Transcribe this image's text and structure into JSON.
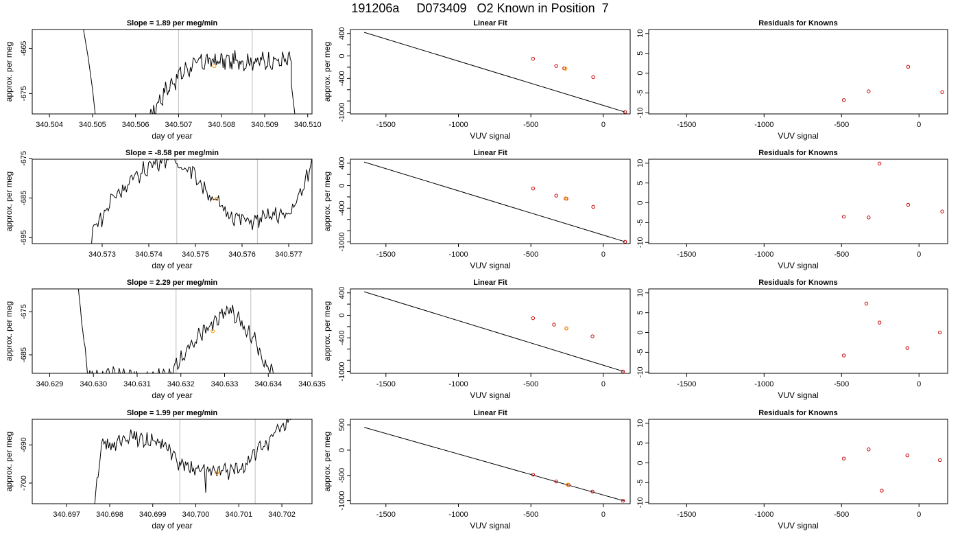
{
  "suptitle": "191206a     D073409   O2 Known in Position  7",
  "colors": {
    "trace": "#000000",
    "known": "#cc0000",
    "marker": "#ff9900",
    "window": "#c8c8c8"
  },
  "chart_data": [
    {
      "type": "line",
      "panel": "timeseries",
      "row": 1,
      "title": "Slope =  1.89  per meg/min",
      "xlabel": "day of year",
      "ylabel": "approx. per meg",
      "xlim": [
        340.5036,
        340.5101
      ],
      "ylim": [
        -679.5,
        -660.8
      ],
      "xticks": [
        340.504,
        340.505,
        340.506,
        340.507,
        340.508,
        340.509,
        340.51
      ],
      "xtick_labels": [
        "340.504",
        "340.505",
        "340.506",
        "340.507",
        "340.508",
        "340.509",
        "340.510"
      ],
      "yticks": [
        -665,
        -675
      ],
      "ytick_labels": [
        "-665",
        "-675"
      ],
      "vlines": [
        340.507,
        340.50871
      ],
      "marker": {
        "x": 340.50783,
        "y": -668.9
      },
      "trace": {
        "points": [
          [
            340.50476,
            -659
          ],
          [
            340.5049,
            -667
          ],
          [
            340.505,
            -674
          ],
          [
            340.50508,
            -681
          ]
        ],
        "start": 340.50617,
        "end": 340.50962,
        "base": -683,
        "peak": -667.8,
        "noise": 1.0,
        "tail": [
          [
            340.50962,
            -673
          ],
          [
            340.50972,
            -681
          ]
        ]
      }
    },
    {
      "type": "scatter",
      "panel": "linear_fit",
      "row": 1,
      "title": "Linear Fit",
      "xlabel": "VUV signal",
      "ylabel": "approx. per meg",
      "xlim": [
        -1745,
        185
      ],
      "ylim": [
        -1030,
        470
      ],
      "xticks": [
        -1500,
        -1000,
        -500,
        0
      ],
      "xtick_labels": [
        "-1500",
        "-1000",
        "-500",
        "0"
      ],
      "yticks": [
        400,
        0,
        -400,
        -1000
      ],
      "ytick_labels": [
        "400",
        "0",
        "-400",
        "-1000"
      ],
      "yminor": [
        200,
        -200,
        -600,
        -800
      ],
      "line": [
        [
          -1650,
          420
        ],
        [
          150,
          -997
        ]
      ],
      "points": [
        [
          -485,
          -50
        ],
        [
          -325,
          -177
        ],
        [
          -270,
          -220
        ],
        [
          -70,
          -377
        ],
        [
          150,
          -997
        ]
      ],
      "marker": {
        "x": -262,
        "y": -225
      }
    },
    {
      "type": "scatter",
      "panel": "residuals",
      "row": 1,
      "title": "Residuals for Knowns",
      "xlabel": "VUV signal",
      "ylabel": "",
      "xlim": [
        -1745,
        185
      ],
      "ylim": [
        -10.3,
        11
      ],
      "xticks": [
        -1500,
        -1000,
        -500,
        0
      ],
      "xtick_labels": [
        "-1500",
        "-1000",
        "-500",
        "0"
      ],
      "yticks": [
        10,
        5,
        0,
        -5,
        -10
      ],
      "ytick_labels": [
        "10",
        "5",
        "0",
        "-5",
        "-10"
      ],
      "points": [
        [
          -485,
          -6.8
        ],
        [
          -325,
          -4.6
        ],
        [
          -70,
          1.6
        ],
        [
          150,
          -4.8
        ]
      ]
    },
    {
      "type": "line",
      "panel": "timeseries",
      "row": 2,
      "title": "Slope =  -8.58  per meg/min",
      "xlabel": "day of year",
      "ylabel": "approx. per meg",
      "xlim": [
        340.5715,
        340.5775
      ],
      "ylim": [
        -696.5,
        -675.2
      ],
      "xticks": [
        340.573,
        340.574,
        340.575,
        340.576,
        340.577
      ],
      "xtick_labels": [
        "340.573",
        "340.574",
        "340.575",
        "340.576",
        "340.577"
      ],
      "yticks": [
        -675,
        -685,
        -695
      ],
      "ytick_labels": [
        "-675",
        "-685",
        "-695"
      ],
      "vlines": [
        340.5746,
        340.57633
      ],
      "marker": {
        "x": 340.57545,
        "y": -685.2
      },
      "trace": {
        "points": [
          [
            340.57277,
            -697
          ],
          [
            340.5728,
            -692
          ],
          [
            340.573,
            -690
          ],
          [
            340.5731,
            -688
          ],
          [
            340.5732,
            -685
          ],
          [
            340.5735,
            -682
          ],
          [
            340.5738,
            -679
          ],
          [
            340.5741,
            -676
          ],
          [
            340.5744,
            -675
          ],
          [
            340.5746,
            -676
          ],
          [
            340.5749,
            -678
          ],
          [
            340.5751,
            -681
          ],
          [
            340.5753,
            -684
          ],
          [
            340.5756,
            -688
          ],
          [
            340.5759,
            -690
          ],
          [
            340.5762,
            -691
          ],
          [
            340.5765,
            -690
          ],
          [
            340.5768,
            -689
          ],
          [
            340.57695,
            -690
          ],
          [
            340.5771,
            -687
          ],
          [
            340.5773,
            -683
          ],
          [
            340.57745,
            -678
          ],
          [
            340.5775,
            -675
          ]
        ],
        "noise": 1.1
      }
    },
    {
      "type": "scatter",
      "panel": "linear_fit",
      "row": 2,
      "title": "Linear Fit",
      "xlabel": "VUV signal",
      "ylabel": "approx. per meg",
      "xlim": [
        -1745,
        185
      ],
      "ylim": [
        -1030,
        470
      ],
      "xticks": [
        -1500,
        -1000,
        -500,
        0
      ],
      "xtick_labels": [
        "-1500",
        "-1000",
        "-500",
        "0"
      ],
      "yticks": [
        400,
        0,
        -400,
        -1000
      ],
      "ytick_labels": [
        "400",
        "0",
        "-400",
        "-1000"
      ],
      "yminor": [
        200,
        -200,
        -600,
        -800
      ],
      "line": [
        [
          -1650,
          420
        ],
        [
          150,
          -997
        ]
      ],
      "points": [
        [
          -485,
          -50
        ],
        [
          -325,
          -177
        ],
        [
          -255,
          -232
        ],
        [
          -70,
          -377
        ],
        [
          150,
          -997
        ]
      ],
      "marker": {
        "x": -262,
        "y": -227
      }
    },
    {
      "type": "scatter",
      "panel": "residuals",
      "row": 2,
      "title": "Residuals for Knowns",
      "xlabel": "VUV signal",
      "ylabel": "",
      "xlim": [
        -1745,
        185
      ],
      "ylim": [
        -10.3,
        11
      ],
      "xticks": [
        -1500,
        -1000,
        -500,
        0
      ],
      "xtick_labels": [
        "-1500",
        "-1000",
        "-500",
        "0"
      ],
      "yticks": [
        10,
        5,
        0,
        -5,
        -10
      ],
      "ytick_labels": [
        "10",
        "5",
        "0",
        "-5",
        "-10"
      ],
      "points": [
        [
          -485,
          -3.5
        ],
        [
          -325,
          -3.7
        ],
        [
          -255,
          9.9
        ],
        [
          -70,
          -0.5
        ],
        [
          150,
          -2.2
        ]
      ]
    },
    {
      "type": "line",
      "panel": "timeseries",
      "row": 3,
      "title": "Slope =  2.29  per meg/min",
      "xlabel": "day of year",
      "ylabel": "approx. per meg",
      "xlim": [
        340.6286,
        340.635
      ],
      "ylim": [
        -689.3,
        -669.7
      ],
      "xticks": [
        340.629,
        340.63,
        340.631,
        340.632,
        340.633,
        340.634,
        340.635
      ],
      "xtick_labels": [
        "340.629",
        "340.630",
        "340.631",
        "340.632",
        "340.633",
        "340.634",
        "340.635"
      ],
      "yticks": [
        -675,
        -685
      ],
      "ytick_labels": [
        "-675",
        "-685"
      ],
      "vlines": [
        340.63189,
        340.6336
      ],
      "marker": {
        "x": 340.63273,
        "y": -679.5
      },
      "trace": {
        "points": [
          [
            340.62965,
            -669
          ],
          [
            340.6297,
            -674
          ],
          [
            340.6298,
            -682
          ],
          [
            340.62985,
            -690
          ],
          [
            340.6317,
            -690
          ],
          [
            340.6319,
            -687
          ],
          [
            340.6322,
            -683
          ],
          [
            340.6325,
            -680
          ],
          [
            340.6328,
            -677
          ],
          [
            340.6331,
            -674
          ],
          [
            340.6334,
            -678
          ],
          [
            340.6337,
            -682
          ],
          [
            340.6339,
            -686
          ],
          [
            340.6341,
            -689
          ],
          [
            340.6342,
            -690
          ]
        ],
        "noise": 1.0
      }
    },
    {
      "type": "scatter",
      "panel": "linear_fit",
      "row": 3,
      "title": "Linear Fit",
      "xlabel": "VUV signal",
      "ylabel": "approx. per meg",
      "xlim": [
        -1745,
        185
      ],
      "ylim": [
        -1030,
        470
      ],
      "xticks": [
        -1500,
        -1000,
        -500,
        0
      ],
      "xtick_labels": [
        "-1500",
        "-1000",
        "-500",
        "0"
      ],
      "yticks": [
        400,
        0,
        -400,
        -1000
      ],
      "ytick_labels": [
        "400",
        "0",
        "-400",
        "-1000"
      ],
      "yminor": [
        200,
        -200,
        -600,
        -800
      ],
      "line": [
        [
          -1650,
          420
        ],
        [
          140,
          -997
        ]
      ],
      "points": [
        [
          -485,
          -50
        ],
        [
          -340,
          -165
        ],
        [
          -255,
          -232
        ],
        [
          -75,
          -373
        ],
        [
          135,
          -997
        ]
      ],
      "marker": {
        "x": -255,
        "y": -232
      }
    },
    {
      "type": "scatter",
      "panel": "residuals",
      "row": 3,
      "title": "Residuals for Knowns",
      "xlabel": "VUV signal",
      "ylabel": "",
      "xlim": [
        -1745,
        185
      ],
      "ylim": [
        -10.3,
        11
      ],
      "xticks": [
        -1500,
        -1000,
        -500,
        0
      ],
      "xtick_labels": [
        "-1500",
        "-1000",
        "-500",
        "0"
      ],
      "yticks": [
        10,
        5,
        0,
        -5,
        -10
      ],
      "ytick_labels": [
        "10",
        "5",
        "0",
        "-5",
        "-10"
      ],
      "points": [
        [
          -485,
          -5.8
        ],
        [
          -340,
          7.3
        ],
        [
          -255,
          2.5
        ],
        [
          -75,
          -3.9
        ],
        [
          135,
          0
        ]
      ]
    },
    {
      "type": "line",
      "panel": "timeseries",
      "row": 4,
      "title": "Slope =  1.99  per meg/min",
      "xlabel": "day of year",
      "ylabel": "approx. per meg",
      "xlim": [
        340.6962,
        340.7027
      ],
      "ylim": [
        -705.4,
        -683.3
      ],
      "xticks": [
        340.697,
        340.698,
        340.699,
        340.7,
        340.701,
        340.702
      ],
      "xtick_labels": [
        "340.697",
        "340.698",
        "340.699",
        "340.700",
        "340.701",
        "340.702"
      ],
      "yticks": [
        -690,
        -700
      ],
      "ytick_labels": [
        "-690",
        "-700"
      ],
      "vlines": [
        340.69963,
        340.70138
      ],
      "marker": {
        "x": 340.70049,
        "y": -697.3
      },
      "trace": {
        "points": [
          [
            340.69765,
            -706
          ],
          [
            340.6977,
            -699
          ],
          [
            340.6978,
            -690
          ],
          [
            340.6981,
            -690
          ],
          [
            340.6985,
            -688
          ],
          [
            340.6989,
            -689
          ],
          [
            340.6993,
            -690
          ],
          [
            340.6996,
            -695
          ],
          [
            340.6999,
            -696
          ],
          [
            340.7002,
            -697
          ],
          [
            340.7005,
            -697
          ],
          [
            340.7008,
            -697
          ],
          [
            340.7011,
            -696
          ],
          [
            340.7014,
            -692
          ],
          [
            340.7017,
            -689
          ],
          [
            340.702,
            -685
          ],
          [
            340.70225,
            -683
          ]
        ],
        "noise": 1.1,
        "dip": [
          340.70023,
          -702.5
        ]
      }
    },
    {
      "type": "scatter",
      "panel": "linear_fit",
      "row": 4,
      "title": "Linear Fit",
      "xlabel": "VUV signal",
      "ylabel": "approx. per meg",
      "xlim": [
        -1745,
        185
      ],
      "ylim": [
        -1060,
        610
      ],
      "xticks": [
        -1500,
        -1000,
        -500,
        0
      ],
      "xtick_labels": [
        "-1500",
        "-1000",
        "-500",
        "0"
      ],
      "yticks": [
        500,
        0,
        -500,
        -1000
      ],
      "ytick_labels": [
        "500",
        "0",
        "-500",
        "-1000"
      ],
      "line": [
        [
          -1650,
          450
        ],
        [
          150,
          -1010
        ]
      ],
      "points": [
        [
          -485,
          -485
        ],
        [
          -325,
          -620
        ],
        [
          -240,
          -690
        ],
        [
          -75,
          -820
        ],
        [
          135,
          -1000
        ]
      ],
      "marker": {
        "x": -245,
        "y": -687
      }
    },
    {
      "type": "scatter",
      "panel": "residuals",
      "row": 4,
      "title": "Residuals for Knowns",
      "xlabel": "VUV signal",
      "ylabel": "",
      "xlim": [
        -1745,
        185
      ],
      "ylim": [
        -10.3,
        11
      ],
      "xticks": [
        -1500,
        -1000,
        -500,
        0
      ],
      "xtick_labels": [
        "-1500",
        "-1000",
        "-500",
        "0"
      ],
      "yticks": [
        10,
        5,
        0,
        -5,
        -10
      ],
      "ytick_labels": [
        "10",
        "5",
        "0",
        "-5",
        "-10"
      ],
      "points": [
        [
          -485,
          1.1
        ],
        [
          -325,
          3.4
        ],
        [
          -240,
          -7
        ],
        [
          -75,
          1.9
        ],
        [
          135,
          0.7
        ]
      ]
    }
  ]
}
